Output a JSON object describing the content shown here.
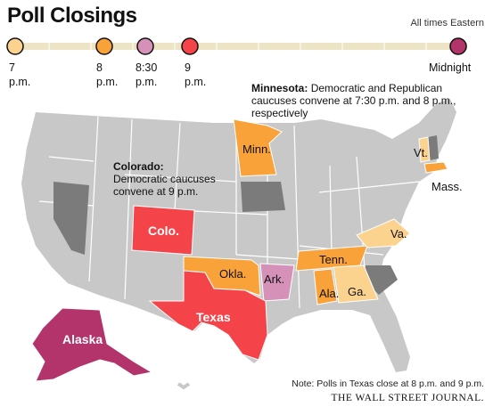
{
  "title": "Poll Closings",
  "timezone_note": "All times Eastern",
  "timeline": [
    {
      "time": "7",
      "unit": "p.m.",
      "color": "#fcd38e"
    },
    {
      "time": "8",
      "unit": "p.m.",
      "color": "#f9a23a"
    },
    {
      "time": "8:30",
      "unit": "p.m.",
      "color": "#d691b9"
    },
    {
      "time": "9",
      "unit": "p.m.",
      "color": "#f5434a"
    },
    {
      "time": "Midnight",
      "unit": "",
      "color": "#b3346b"
    }
  ],
  "colors": {
    "7pm": "#fcd38e",
    "8pm": "#f9a23a",
    "830pm": "#d691b9",
    "9pm": "#f5434a",
    "midnight": "#b3346b",
    "caucus_state": "#7b7b7b",
    "other_state": "#c8c8c8",
    "timeline_bar": "#ede4c5"
  },
  "states": [
    {
      "abbr": "Minn.",
      "closing": "8pm"
    },
    {
      "abbr": "Colo.",
      "closing": "9pm"
    },
    {
      "abbr": "Okla.",
      "closing": "8pm"
    },
    {
      "abbr": "Ark.",
      "closing": "830pm"
    },
    {
      "abbr": "Texas",
      "closing": "9pm"
    },
    {
      "abbr": "Tenn.",
      "closing": "8pm"
    },
    {
      "abbr": "Ala.",
      "closing": "8pm"
    },
    {
      "abbr": "Ga.",
      "closing": "7pm"
    },
    {
      "abbr": "Va.",
      "closing": "7pm"
    },
    {
      "abbr": "Vt.",
      "closing": "7pm"
    },
    {
      "abbr": "Mass.",
      "closing": "8pm"
    },
    {
      "abbr": "Alaska",
      "closing": "midnight"
    }
  ],
  "annotations": {
    "minnesota_head": "Minnesota:",
    "minnesota_body": "Democratic and Republican caucuses convene at 7:30 p.m. and 8 p.m., respectively",
    "colorado_head": "Colorado:",
    "colorado_line1": "Democratic caucuses",
    "colorado_line2": "convene at 9 p.m."
  },
  "note": "Note: Polls in Texas close at 8 p.m. and 9 p.m.",
  "source": "THE WALL STREET JOURNAL."
}
